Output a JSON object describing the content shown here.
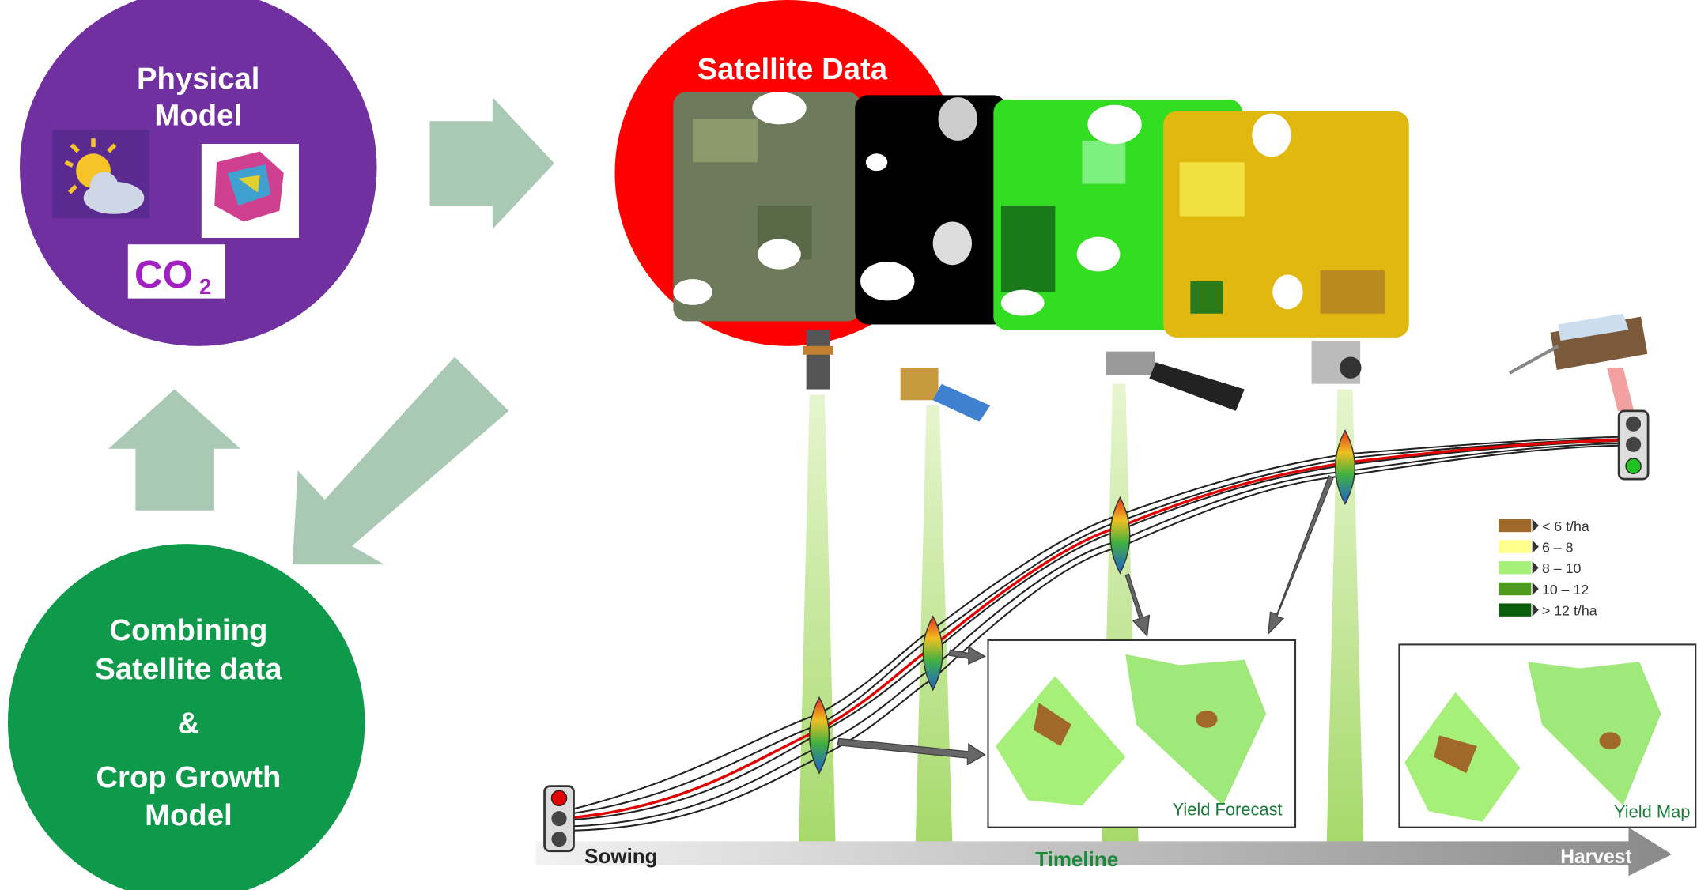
{
  "physical_model": {
    "title_lines": [
      "Physical",
      "Model"
    ],
    "co2": {
      "main": "CO",
      "sub": "2"
    }
  },
  "satellite": {
    "title": "Satellite Data"
  },
  "combining": {
    "lines": [
      "Combining",
      "Satellite data",
      "&",
      "Crop Growth",
      "Model"
    ]
  },
  "timeline": {
    "start": "Sowing",
    "middle": "Timeline",
    "end": "Harvest"
  },
  "panels": {
    "forecast": "Yield Forecast",
    "map": "Yield Map"
  },
  "legend": [
    {
      "label": "< 6 t/ha",
      "color": "#a0692a"
    },
    {
      "label": "6 –  8",
      "color": "#ffff8c"
    },
    {
      "label": "8 – 10",
      "color": "#a6f07a"
    },
    {
      "label": "10 – 12",
      "color": "#4e9a1c"
    },
    {
      "label": "> 12 t/ha",
      "color": "#0b5e0b"
    }
  ]
}
